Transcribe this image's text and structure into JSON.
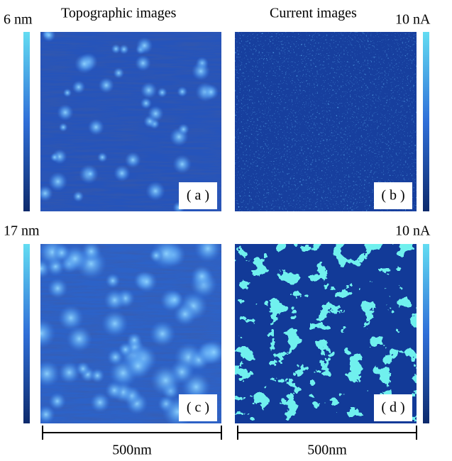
{
  "header": {
    "left_scale": "6 nm",
    "left_title": "Topographic images",
    "right_title": "Current images",
    "right_scale": "10 nA"
  },
  "row2": {
    "left_scale": "17 nm",
    "right_scale": "10 nA"
  },
  "panels": [
    {
      "label": "( a )"
    },
    {
      "label": "( b )"
    },
    {
      "label": "( c )"
    },
    {
      "label": "( d )"
    }
  ],
  "scale_bars": [
    {
      "label": "500nm"
    },
    {
      "label": "500nm"
    }
  ]
}
